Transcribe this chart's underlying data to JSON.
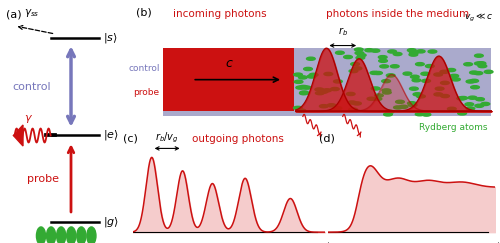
{
  "fig_width": 5.0,
  "fig_height": 2.43,
  "bg_color": "#ffffff",
  "panel_labels": [
    "(a)",
    "(b)",
    "(c)",
    "(d)"
  ],
  "red_color": "#cc1111",
  "dark_red": "#aa0000",
  "blue_purple": "#7777bb",
  "green_atom": "#33aa33",
  "light_red_fill": "#f5cccc",
  "waveguide_color": "#aaaacc",
  "incoming_photons_label": "incoming photons",
  "photons_medium_label": "photons inside the medium",
  "control_label": "control",
  "probe_label": "probe",
  "outgoing_label": "outgoing photons",
  "rydberg_label": "Rydberg atoms",
  "c_label": "c",
  "vg_label": "$v_g \\ll c$",
  "rb_vg_label": "$r_b/v_g$",
  "rb_label": "$r_b$",
  "state_s": "$|s\\rangle$",
  "state_e": "$|e\\rangle$",
  "state_g": "$|g\\rangle$"
}
